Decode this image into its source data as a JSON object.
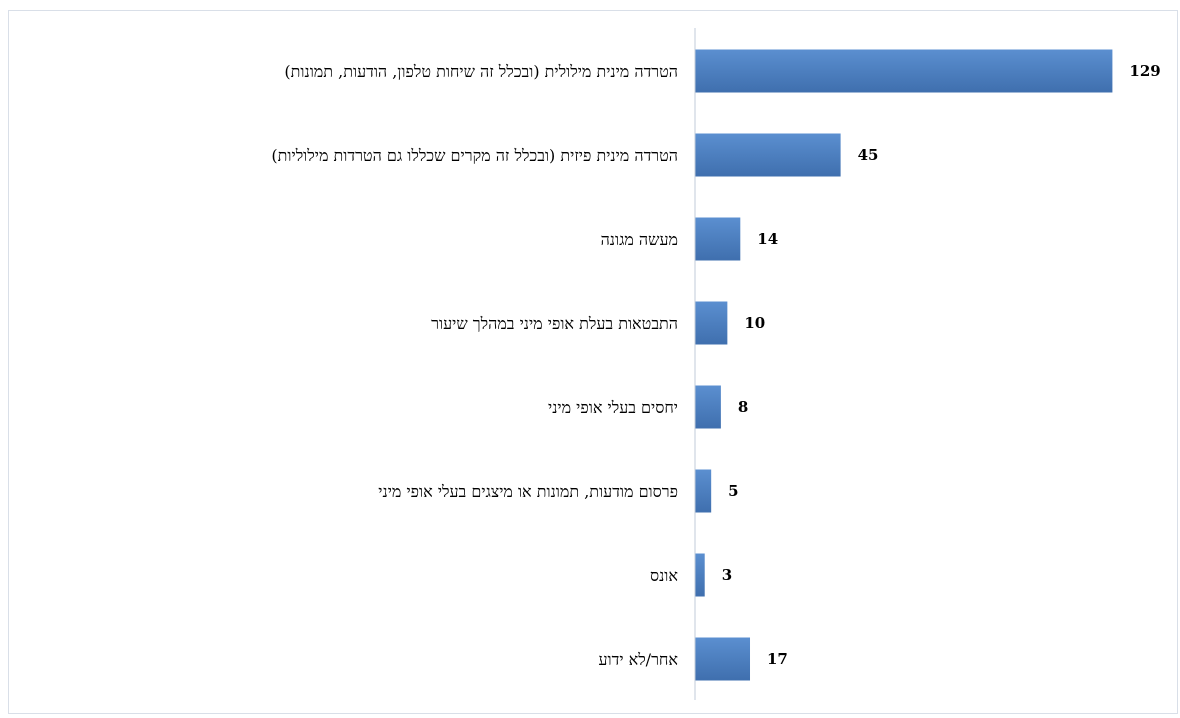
{
  "chart_data": {
    "type": "bar",
    "orientation": "horizontal",
    "categories": [
      "הטרדה מינית מילולית (ובכלל זה שיחות טלפון, הודעות, תמונות)",
      "הטרדה מינית פיזית (ובכלל זה מקרים שכללו גם הטרדות מילוליות)",
      "מעשה מגונה",
      "התבטאות בעלת אופי מיני במהלך שיעור",
      "יחסים בעלי אופי מיני",
      "פרסום מודעות, תמונות או מיצגים בעלי אופי מיני",
      "אונס",
      "אחר/לא ידוע"
    ],
    "values": [
      129,
      45,
      14,
      10,
      8,
      5,
      3,
      17
    ],
    "xlim": [
      0,
      140
    ],
    "grid": false,
    "legend": "none",
    "bar_color": "#4a7ebb",
    "axis_color": "#c0cbd9"
  }
}
